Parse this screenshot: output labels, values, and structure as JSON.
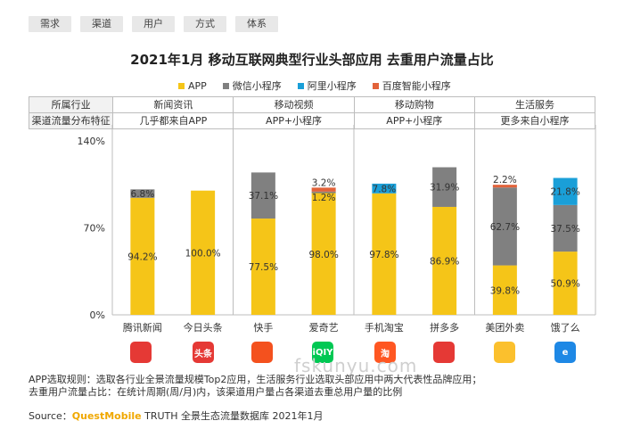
{
  "tabs": [
    {
      "label": "需求",
      "active": true
    },
    {
      "label": "渠道",
      "active": false
    },
    {
      "label": "用户",
      "active": false
    },
    {
      "label": "方式",
      "active": false
    },
    {
      "label": "体系",
      "active": false
    }
  ],
  "table": {
    "row1_header": "所属行业",
    "row2_header": "渠道流量分布特征",
    "groups": [
      {
        "industry": "新闻资讯",
        "feature": "几乎都来自APP"
      },
      {
        "industry": "移动视频",
        "feature": "APP+小程序"
      },
      {
        "industry": "移动购物",
        "feature": "APP+小程序"
      },
      {
        "industry": "生活服务",
        "feature": "更多来自小程序"
      }
    ]
  },
  "logos": [
    {
      "name": "tencent-news-logo",
      "color": "#e53935",
      "text": ""
    },
    {
      "name": "toutiao-logo",
      "color": "#e53935",
      "text": "头条"
    },
    {
      "name": "kuaishou-logo",
      "color": "#f4511e",
      "text": ""
    },
    {
      "name": "iqiyi-logo",
      "color": "#00c853",
      "text": "iQIY"
    },
    {
      "name": "taobao-logo",
      "color": "#ff5722",
      "text": "淘"
    },
    {
      "name": "pinduoduo-logo",
      "color": "#e53935",
      "text": ""
    },
    {
      "name": "meituan-waimai-logo",
      "color": "#fbc02d",
      "text": ""
    },
    {
      "name": "eleme-logo",
      "color": "#1e88e5",
      "text": "e"
    }
  ],
  "footnote": {
    "line1": "APP选取规则：选取各行业全景流量规模Top2应用，生活服务行业选取头部应用中两大代表性品牌应用；",
    "line2": "去重用户流量占比：在统计周期(周/月)内，该渠道用户量占各渠道去重总用户量的比例"
  },
  "source": {
    "prefix": "Source：",
    "brand": "QuestMobile",
    "suffix": " TRUTH 全景生态流量数据库 2021年1月"
  },
  "watermark": "fskunyu.com",
  "chart_data": {
    "type": "bar",
    "stacked": true,
    "title": "2021年1月 移动互联网典型行业头部应用 去重用户流量占比",
    "categories": [
      "腾讯新闻",
      "今日头条",
      "快手",
      "爱奇艺",
      "手机淘宝",
      "拼多多",
      "美团外卖",
      "饿了么"
    ],
    "series": [
      {
        "name": "APP",
        "color": "#f5c518",
        "values": [
          94.2,
          100.0,
          77.5,
          98.0,
          97.8,
          86.9,
          39.8,
          50.9
        ]
      },
      {
        "name": "微信小程序",
        "color": "#808080",
        "values": [
          6.8,
          0,
          37.1,
          1.2,
          0,
          31.9,
          62.7,
          37.5
        ]
      },
      {
        "name": "阿里小程序",
        "color": "#1a9fd8",
        "values": [
          0,
          0,
          0,
          0,
          7.8,
          0,
          0,
          21.8
        ]
      },
      {
        "name": "百度智能小程序",
        "color": "#e2623a",
        "values": [
          0,
          0,
          0,
          3.2,
          0,
          0,
          2.2,
          0
        ]
      }
    ],
    "labels": [
      [
        "94.2%",
        "6.8%",
        "",
        ""
      ],
      [
        "100.0%",
        "",
        "",
        ""
      ],
      [
        "77.5%",
        "37.1%",
        "",
        ""
      ],
      [
        "98.0%",
        "1.2%",
        "",
        "3.2%"
      ],
      [
        "97.8%",
        "",
        "7.8%",
        ""
      ],
      [
        "86.9%",
        "31.9%",
        "",
        ""
      ],
      [
        "39.8%",
        "62.7%",
        "",
        "2.2%"
      ],
      [
        "50.9%",
        "37.5%",
        "21.8%",
        ""
      ]
    ],
    "yticks": [
      "0%",
      "70%",
      "140%"
    ],
    "ylim": [
      0,
      140
    ],
    "legend_position": "top"
  }
}
